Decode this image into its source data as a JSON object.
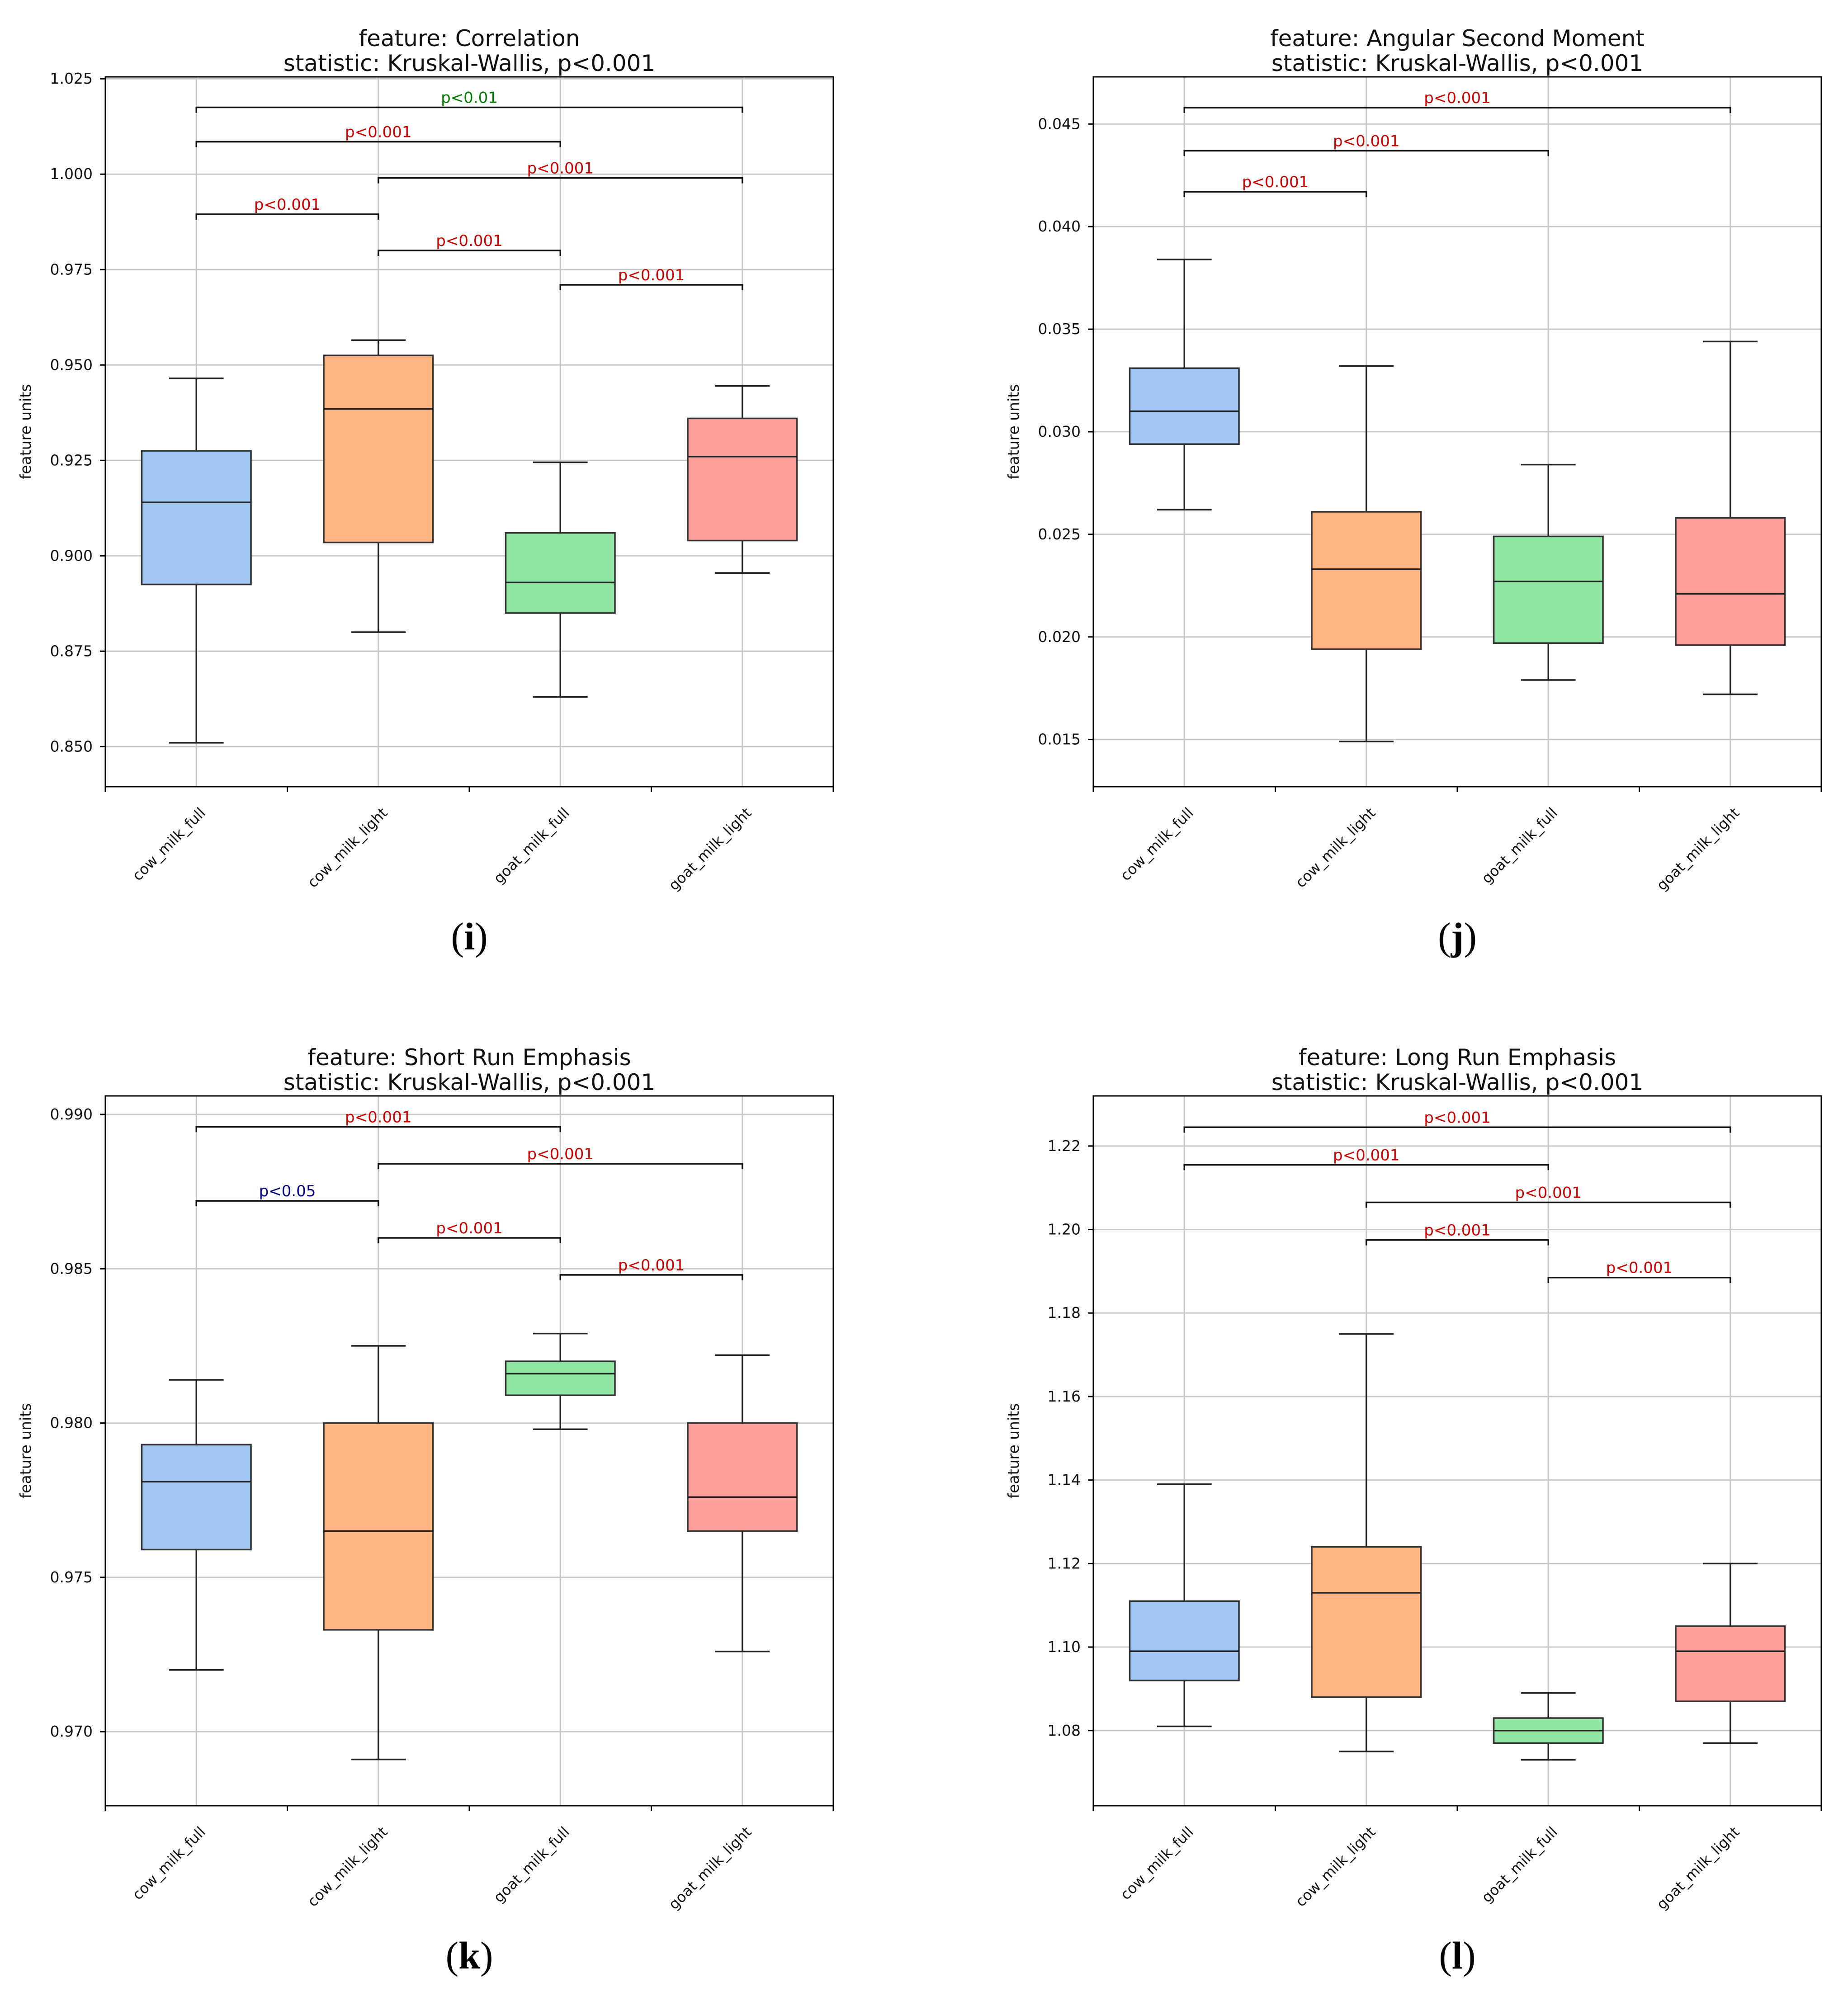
{
  "ylabel": "feature units",
  "colors": {
    "cow_milk_full": "#a1c9f4",
    "cow_milk_light": "#ffb482",
    "goat_milk_full": "#8de5a1",
    "goat_milk_light": "#ff9f9b",
    "sig_red": "#cc0000",
    "sig_green": "#007a00",
    "sig_blue": "#000080",
    "grid": "#c8c8c8"
  },
  "chart_data": [
    {
      "type": "box",
      "panel_label": "i",
      "title": "feature: Correlation",
      "subtitle": "statistic: Kruskal-Wallis, p<0.001",
      "ylabel": "feature units",
      "categories": [
        "cow_milk_full",
        "cow_milk_light",
        "goat_milk_full",
        "goat_milk_light"
      ],
      "yticks": [
        0.85,
        0.875,
        0.9,
        0.925,
        0.95,
        0.975,
        1.0,
        1.025
      ],
      "ytick_labels": [
        "0.850",
        "0.875",
        "0.900",
        "0.925",
        "0.950",
        "0.975",
        "1.000",
        "1.025"
      ],
      "ylim": [
        0.8395,
        1.0255
      ],
      "boxes": [
        {
          "min": 0.851,
          "q1": 0.8925,
          "median": 0.914,
          "q3": 0.9275,
          "max": 0.9465
        },
        {
          "min": 0.88,
          "q1": 0.9035,
          "median": 0.9385,
          "q3": 0.9525,
          "max": 0.9565
        },
        {
          "min": 0.863,
          "q1": 0.885,
          "median": 0.893,
          "q3": 0.906,
          "max": 0.9245
        },
        {
          "min": 0.8955,
          "q1": 0.904,
          "median": 0.926,
          "q3": 0.936,
          "max": 0.9445
        }
      ],
      "comparisons": [
        {
          "from": 0,
          "to": 3,
          "y": 1.0175,
          "label": "p<0.01",
          "color": "green"
        },
        {
          "from": 0,
          "to": 2,
          "y": 1.0085,
          "label": "p<0.001",
          "color": "red"
        },
        {
          "from": 1,
          "to": 3,
          "y": 0.999,
          "label": "p<0.001",
          "color": "red"
        },
        {
          "from": 0,
          "to": 1,
          "y": 0.9895,
          "label": "p<0.001",
          "color": "red"
        },
        {
          "from": 1,
          "to": 2,
          "y": 0.98,
          "label": "p<0.001",
          "color": "red"
        },
        {
          "from": 2,
          "to": 3,
          "y": 0.971,
          "label": "p<0.001",
          "color": "red"
        }
      ]
    },
    {
      "type": "box",
      "panel_label": "j",
      "title": "feature: Angular Second Moment",
      "subtitle": "statistic: Kruskal-Wallis, p<0.001",
      "ylabel": "feature units",
      "categories": [
        "cow_milk_full",
        "cow_milk_light",
        "goat_milk_full",
        "goat_milk_light"
      ],
      "yticks": [
        0.015,
        0.02,
        0.025,
        0.03,
        0.035,
        0.04,
        0.045
      ],
      "ytick_labels": [
        "0.015",
        "0.020",
        "0.025",
        "0.030",
        "0.035",
        "0.040",
        "0.045"
      ],
      "ylim": [
        0.0127,
        0.0473
      ],
      "boxes": [
        {
          "min": 0.0262,
          "q1": 0.0294,
          "median": 0.031,
          "q3": 0.0331,
          "max": 0.0384
        },
        {
          "min": 0.0149,
          "q1": 0.0194,
          "median": 0.0233,
          "q3": 0.0261,
          "max": 0.0332
        },
        {
          "min": 0.0179,
          "q1": 0.0197,
          "median": 0.0227,
          "q3": 0.0249,
          "max": 0.0284
        },
        {
          "min": 0.0172,
          "q1": 0.0196,
          "median": 0.0221,
          "q3": 0.0258,
          "max": 0.0344
        }
      ],
      "comparisons": [
        {
          "from": 0,
          "to": 3,
          "y": 0.0458,
          "label": "p<0.001",
          "color": "red"
        },
        {
          "from": 0,
          "to": 2,
          "y": 0.0437,
          "label": "p<0.001",
          "color": "red"
        },
        {
          "from": 0,
          "to": 1,
          "y": 0.0417,
          "label": "p<0.001",
          "color": "red"
        }
      ]
    },
    {
      "type": "box",
      "panel_label": "k",
      "title": "feature: Short Run Emphasis",
      "subtitle": "statistic: Kruskal-Wallis, p<0.001",
      "ylabel": "feature units",
      "categories": [
        "cow_milk_full",
        "cow_milk_light",
        "goat_milk_full",
        "goat_milk_light"
      ],
      "yticks": [
        0.97,
        0.975,
        0.98,
        0.985,
        0.99
      ],
      "ytick_labels": [
        "0.970",
        "0.975",
        "0.980",
        "0.985",
        "0.990"
      ],
      "ylim": [
        0.9676,
        0.9906
      ],
      "boxes": [
        {
          "min": 0.972,
          "q1": 0.9759,
          "median": 0.9781,
          "q3": 0.9793,
          "max": 0.9814
        },
        {
          "min": 0.9691,
          "q1": 0.9733,
          "median": 0.9765,
          "q3": 0.98,
          "max": 0.9825
        },
        {
          "min": 0.9798,
          "q1": 0.9809,
          "median": 0.9816,
          "q3": 0.982,
          "max": 0.9829
        },
        {
          "min": 0.9726,
          "q1": 0.9765,
          "median": 0.9776,
          "q3": 0.98,
          "max": 0.9822
        }
      ],
      "comparisons": [
        {
          "from": 0,
          "to": 2,
          "y": 0.9896,
          "label": "p<0.001",
          "color": "red"
        },
        {
          "from": 1,
          "to": 3,
          "y": 0.9884,
          "label": "p<0.001",
          "color": "red"
        },
        {
          "from": 0,
          "to": 1,
          "y": 0.9872,
          "label": "p<0.05",
          "color": "blue"
        },
        {
          "from": 1,
          "to": 2,
          "y": 0.986,
          "label": "p<0.001",
          "color": "red"
        },
        {
          "from": 2,
          "to": 3,
          "y": 0.9848,
          "label": "p<0.001",
          "color": "red"
        }
      ]
    },
    {
      "type": "box",
      "panel_label": "l",
      "title": "feature: Long Run Emphasis",
      "subtitle": "statistic: Kruskal-Wallis, p<0.001",
      "ylabel": "feature units",
      "categories": [
        "cow_milk_full",
        "cow_milk_light",
        "goat_milk_full",
        "goat_milk_light"
      ],
      "yticks": [
        1.08,
        1.1,
        1.12,
        1.14,
        1.16,
        1.18,
        1.2,
        1.22
      ],
      "ytick_labels": [
        "1.08",
        "1.10",
        "1.12",
        "1.14",
        "1.16",
        "1.18",
        "1.20",
        "1.22"
      ],
      "ylim": [
        1.062,
        1.232
      ],
      "boxes": [
        {
          "min": 1.081,
          "q1": 1.092,
          "median": 1.099,
          "q3": 1.111,
          "max": 1.139
        },
        {
          "min": 1.075,
          "q1": 1.088,
          "median": 1.113,
          "q3": 1.124,
          "max": 1.175
        },
        {
          "min": 1.073,
          "q1": 1.077,
          "median": 1.08,
          "q3": 1.083,
          "max": 1.089
        },
        {
          "min": 1.077,
          "q1": 1.087,
          "median": 1.099,
          "q3": 1.105,
          "max": 1.12
        }
      ],
      "comparisons": [
        {
          "from": 0,
          "to": 3,
          "y": 1.2245,
          "label": "p<0.001",
          "color": "red"
        },
        {
          "from": 0,
          "to": 2,
          "y": 1.2155,
          "label": "p<0.001",
          "color": "red"
        },
        {
          "from": 1,
          "to": 3,
          "y": 1.2065,
          "label": "p<0.001",
          "color": "red"
        },
        {
          "from": 1,
          "to": 2,
          "y": 1.1975,
          "label": "p<0.001",
          "color": "red"
        },
        {
          "from": 2,
          "to": 3,
          "y": 1.1885,
          "label": "p<0.001",
          "color": "red"
        }
      ]
    }
  ]
}
